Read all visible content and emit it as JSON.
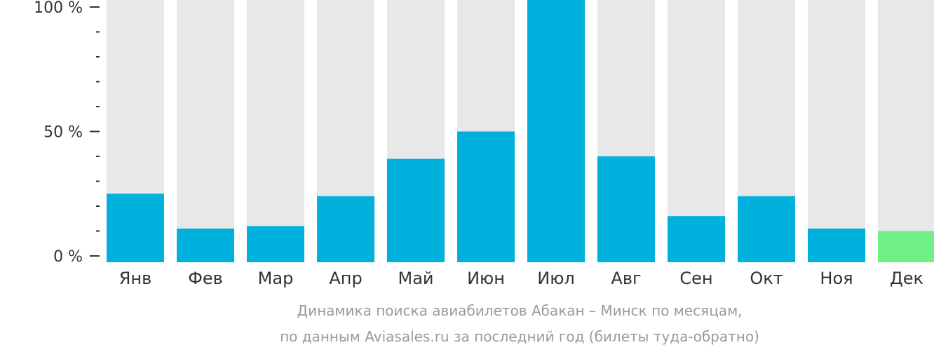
{
  "chart_data": {
    "type": "bar",
    "categories": [
      "Янв",
      "Фев",
      "Мар",
      "Апр",
      "Май",
      "Июн",
      "Июл",
      "Авг",
      "Сен",
      "Окт",
      "Ноя",
      "Дек"
    ],
    "values": [
      25,
      11,
      12,
      24,
      39,
      50,
      105,
      40,
      16,
      24,
      11,
      10
    ],
    "ylim": [
      0,
      100
    ],
    "yticks": [
      {
        "value": 100,
        "label": "100 %"
      },
      {
        "value": 50,
        "label": "50 %"
      },
      {
        "value": 0,
        "label": "0 %"
      }
    ],
    "minor_ticks": [
      90,
      80,
      70,
      60,
      40,
      30,
      20,
      10
    ],
    "highlight_index": 11,
    "title": "",
    "xlabel": "",
    "ylabel": "",
    "grid": false,
    "caption_line1": "Динамика поиска авиабилетов Абакан – Минск по месяцам,",
    "caption_line2": "по данным Aviasales.ru за последний год (билеты туда-обратно)"
  },
  "colors": {
    "bar": "#00b0dd",
    "bar_highlight": "#6ef087",
    "track": "#e8e8e8",
    "axis": "#333333"
  }
}
